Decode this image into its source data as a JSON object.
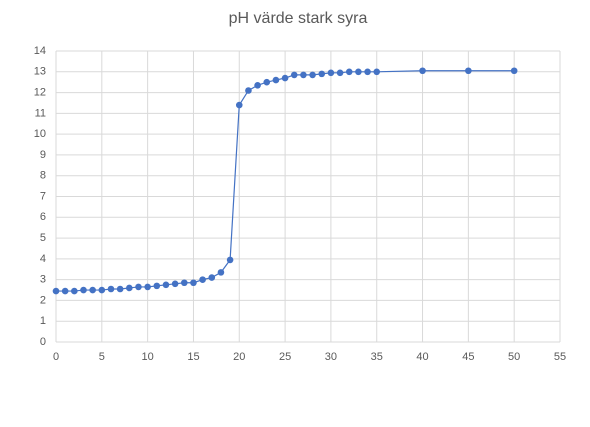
{
  "chart_data": {
    "type": "scatter",
    "title": "pH värde stark syra",
    "x": [
      0,
      1,
      2,
      3,
      4,
      5,
      6,
      7,
      8,
      9,
      10,
      11,
      12,
      13,
      14,
      15,
      16,
      17,
      18,
      19,
      20,
      21,
      22,
      23,
      24,
      25,
      26,
      27,
      28,
      29,
      30,
      31,
      32,
      33,
      34,
      35,
      40,
      45,
      50
    ],
    "values": [
      2.45,
      2.45,
      2.45,
      2.5,
      2.5,
      2.5,
      2.55,
      2.55,
      2.6,
      2.65,
      2.65,
      2.7,
      2.75,
      2.8,
      2.85,
      2.85,
      3.0,
      3.1,
      3.35,
      3.95,
      11.4,
      12.1,
      12.35,
      12.5,
      12.6,
      12.7,
      12.85,
      12.85,
      12.85,
      12.9,
      12.95,
      12.95,
      13.0,
      13.0,
      13.0,
      13.0,
      13.05,
      13.05,
      13.05
    ],
    "color": "#4472c4",
    "xlim": [
      0,
      55
    ],
    "xticks": [
      0,
      5,
      10,
      15,
      20,
      25,
      30,
      35,
      40,
      45,
      50,
      55
    ],
    "ylim": [
      0,
      14
    ],
    "yticks": [
      0,
      1,
      2,
      3,
      4,
      5,
      6,
      7,
      8,
      9,
      10,
      11,
      12,
      13,
      14
    ],
    "grid": true
  }
}
